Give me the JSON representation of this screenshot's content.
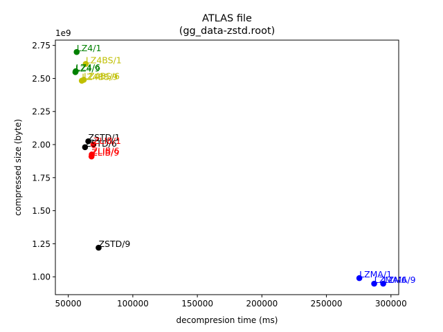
{
  "chart_data": {
    "type": "scatter",
    "title_line1": "ATLAS file",
    "title_line2": "(gg_data-zstd.root)",
    "xlabel": "decompresion time (ms)",
    "ylabel": "compressed size (byte)",
    "y_multiplier_label": "1e9",
    "xlim": [
      40000,
      306000
    ],
    "ylim": [
      0.865,
      2.79
    ],
    "x_ticks": [
      50000,
      100000,
      150000,
      200000,
      250000,
      300000
    ],
    "x_tick_labels": [
      "50000",
      "100000",
      "150000",
      "200000",
      "250000",
      "300000"
    ],
    "y_ticks": [
      1.0,
      1.25,
      1.5,
      1.75,
      2.0,
      2.25,
      2.5,
      2.75
    ],
    "y_tick_labels": [
      "1.00",
      "1.25",
      "1.50",
      "1.75",
      "2.00",
      "2.25",
      "2.50",
      "2.75"
    ],
    "grid": false,
    "points": [
      {
        "label": "LZ4/1",
        "x": 56500,
        "y": 2.7,
        "color": "#008000"
      },
      {
        "label": "LZ4/6",
        "x": 55800,
        "y": 2.555,
        "color": "#008000"
      },
      {
        "label": "LZ4/9",
        "x": 55500,
        "y": 2.548,
        "color": "#008000"
      },
      {
        "label": "LZ4BS/1",
        "x": 63500,
        "y": 2.61,
        "color": "#bfbf00"
      },
      {
        "label": "LZ4BS/6",
        "x": 62000,
        "y": 2.49,
        "color": "#bfbf00"
      },
      {
        "label": "LZ4BS/9",
        "x": 60500,
        "y": 2.483,
        "color": "#bfbf00"
      },
      {
        "label": "ZSTD/1",
        "x": 65500,
        "y": 2.025,
        "color": "#000000"
      },
      {
        "label": "ZSTD/6",
        "x": 63000,
        "y": 1.98,
        "color": "#000000"
      },
      {
        "label": "ZSTD/9",
        "x": 73500,
        "y": 1.22,
        "color": "#000000"
      },
      {
        "label": "ZLIB/1",
        "x": 69500,
        "y": 2.0,
        "color": "#ff0000"
      },
      {
        "label": "ZLIB/6",
        "x": 68200,
        "y": 1.925,
        "color": "#ff0000"
      },
      {
        "label": "ZLIB/9",
        "x": 68000,
        "y": 1.91,
        "color": "#ff0000"
      },
      {
        "label": "LZMA/1",
        "x": 275500,
        "y": 0.99,
        "color": "#0000ff"
      },
      {
        "label": "LZMA/6",
        "x": 287000,
        "y": 0.948,
        "color": "#0000ff"
      },
      {
        "label": "LZMA/9",
        "x": 294000,
        "y": 0.948,
        "color": "#0000ff"
      }
    ]
  }
}
